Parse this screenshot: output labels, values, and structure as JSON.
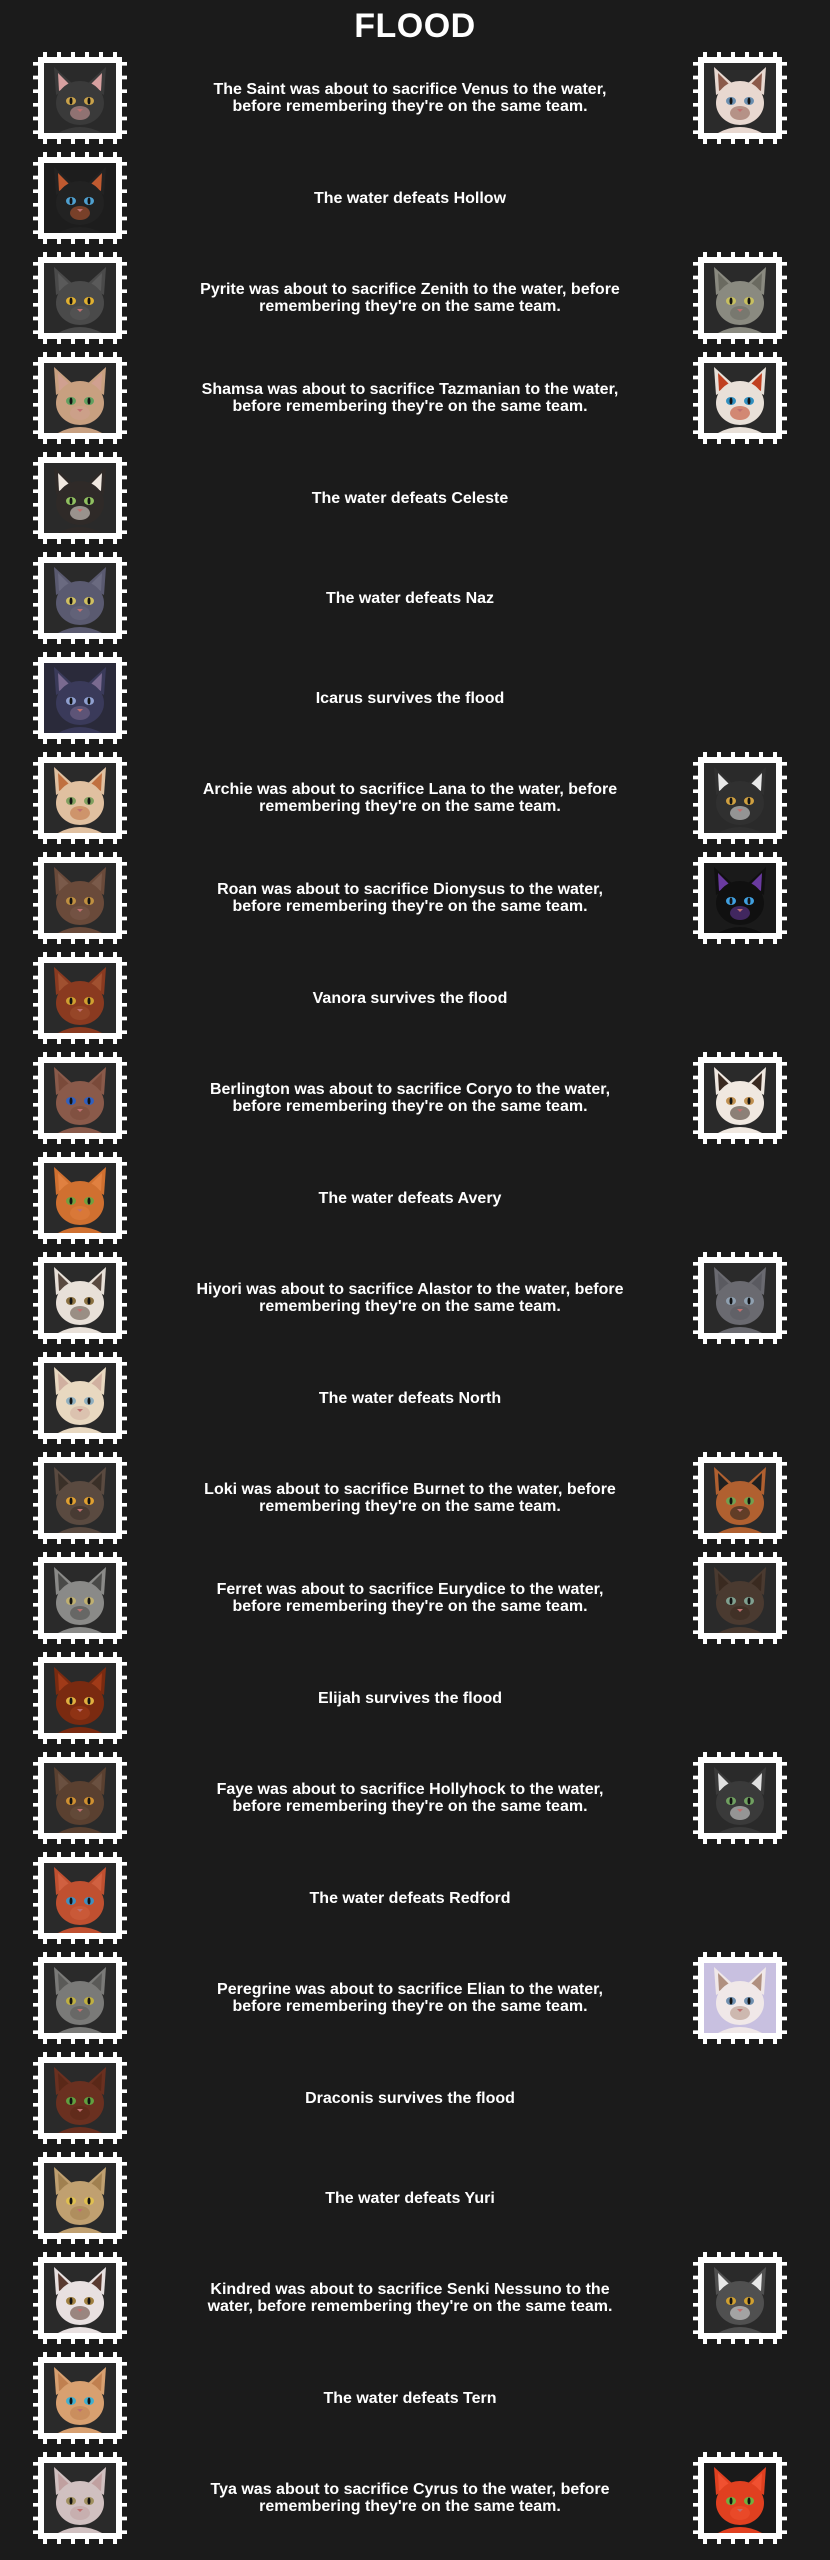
{
  "title": "FLOOD",
  "events": [
    {
      "text": "The Saint was about to sacrifice Venus to the water, before remembering they're on the same team.",
      "left": {
        "icon": "cat-portrait-icon",
        "bg": "#2a2a2a",
        "fur": "#3a3a3a",
        "ear": "#d7a0a0",
        "eye": "#c9a24a"
      },
      "right": {
        "icon": "cat-portrait-icon",
        "bg": "#2b2b2b",
        "fur": "#e8d8d0",
        "ear": "#8b5a4a",
        "eye": "#6a8fb0"
      }
    },
    {
      "text": "The water defeats Hollow",
      "left": {
        "icon": "cat-portrait-icon",
        "bg": "#1d1d1d",
        "fur": "#222222",
        "ear": "#c05a30",
        "eye": "#4fa0d0"
      }
    },
    {
      "text": "Pyrite was about to sacrifice Zenith to the water, before remembering they're on the same team.",
      "left": {
        "icon": "cat-portrait-icon",
        "bg": "#2a2a2a",
        "fur": "#4a4a4a",
        "ear": "#5a5a5a",
        "eye": "#e0b030"
      },
      "right": {
        "icon": "cat-portrait-icon",
        "bg": "#2a2a2a",
        "fur": "#8a8a80",
        "ear": "#6a6a60",
        "eye": "#c8c060"
      }
    },
    {
      "text": "Shamsa was about to sacrifice Tazmanian to the water, before remembering they're on the same team.",
      "left": {
        "icon": "cat-portrait-icon",
        "bg": "#2a2a2a",
        "fur": "#c8a080",
        "ear": "#d0a090",
        "eye": "#60a060"
      },
      "right": {
        "icon": "cat-portrait-icon",
        "bg": "#2a2a2a",
        "fur": "#e8e0d8",
        "ear": "#c04020",
        "eye": "#3090c0"
      }
    },
    {
      "text": "The water defeats Celeste",
      "left": {
        "icon": "cat-portrait-icon",
        "bg": "#2a2a2a",
        "fur": "#2f2a28",
        "ear": "#f0e8e0",
        "eye": "#90c060"
      }
    },
    {
      "text": "The water defeats Naz",
      "left": {
        "icon": "cat-portrait-icon",
        "bg": "#2a2a2a",
        "fur": "#5a5a70",
        "ear": "#6a6a80",
        "eye": "#d0c060"
      }
    },
    {
      "text": "Icarus survives the flood",
      "left": {
        "icon": "cat-portrait-icon",
        "bg": "#2a2a3a",
        "fur": "#3a3a5a",
        "ear": "#7a6a90",
        "eye": "#90a0d0"
      }
    },
    {
      "text": "Archie was about to sacrifice Lana to the water, before remembering they're on the same team.",
      "left": {
        "icon": "cat-portrait-icon",
        "bg": "#2a2a2a",
        "fur": "#e0c0a0",
        "ear": "#c07040",
        "eye": "#80a060"
      },
      "right": {
        "icon": "cat-portrait-icon",
        "bg": "#2a2a2a",
        "fur": "#303030",
        "ear": "#e8e8e8",
        "eye": "#d0a040"
      }
    },
    {
      "text": "Roan was about to sacrifice Dionysus to the water, before remembering they're on the same team.",
      "left": {
        "icon": "cat-portrait-icon",
        "bg": "#2a2a2a",
        "fur": "#6a4a3a",
        "ear": "#7a5a4a",
        "eye": "#c09040"
      },
      "right": {
        "icon": "cat-portrait-icon",
        "bg": "#1a1a1a",
        "fur": "#101010",
        "ear": "#6a3aa0",
        "eye": "#40a0e0"
      }
    },
    {
      "text": "Vanora survives the flood",
      "left": {
        "icon": "cat-portrait-icon",
        "bg": "#2a2a2a",
        "fur": "#8a3a20",
        "ear": "#a05030",
        "eye": "#d0a030"
      }
    },
    {
      "text": "Berlington was about to sacrifice Coryo to the water, before remembering they're on the same team.",
      "left": {
        "icon": "cat-portrait-icon",
        "bg": "#2a2a2a",
        "fur": "#8a5a4a",
        "ear": "#7a4a3a",
        "eye": "#3060c0"
      },
      "right": {
        "icon": "cat-portrait-icon",
        "bg": "#2a2a2a",
        "fur": "#f0e8e0",
        "ear": "#3a2a20",
        "eye": "#c09050"
      }
    },
    {
      "text": "The water defeats Avery",
      "left": {
        "icon": "cat-portrait-icon",
        "bg": "#2a2a2a",
        "fur": "#d07030",
        "ear": "#e08040",
        "eye": "#70a040"
      }
    },
    {
      "text": "Hiyori was about to sacrifice Alastor to the water, before remembering they're on the same team.",
      "left": {
        "icon": "cat-portrait-icon",
        "bg": "#2a2a2a",
        "fur": "#e8e0d8",
        "ear": "#5a4a40",
        "eye": "#8a7040"
      },
      "right": {
        "icon": "cat-portrait-icon",
        "bg": "#2a2a2a",
        "fur": "#6a6a70",
        "ear": "#5a5a60",
        "eye": "#90a0b0"
      }
    },
    {
      "text": "The water defeats North",
      "left": {
        "icon": "cat-portrait-icon",
        "bg": "#2a2a2a",
        "fur": "#e8d8c0",
        "ear": "#d0b0a0",
        "eye": "#90b0c0"
      }
    },
    {
      "text": "Loki was about to sacrifice Burnet to the water, before remembering they're on the same team.",
      "left": {
        "icon": "cat-portrait-icon",
        "bg": "#2a2a2a",
        "fur": "#5a4a40",
        "ear": "#3a3028",
        "eye": "#e0a030"
      },
      "right": {
        "icon": "cat-portrait-icon",
        "bg": "#2a2a2a",
        "fur": "#b06030",
        "ear": "#202020",
        "eye": "#70a050"
      }
    },
    {
      "text": "Ferret was about to sacrifice Eurydice to the water, before remembering they're on the same team.",
      "left": {
        "icon": "cat-portrait-icon",
        "bg": "#2a2a2a",
        "fur": "#8a8a88",
        "ear": "#4a4a48",
        "eye": "#c0b070"
      },
      "right": {
        "icon": "cat-portrait-icon",
        "bg": "#2a2a2a",
        "fur": "#4a3a30",
        "ear": "#3a2a20",
        "eye": "#80a090"
      }
    },
    {
      "text": "Elijah survives the flood",
      "left": {
        "icon": "cat-portrait-icon",
        "bg": "#2a2a2a",
        "fur": "#7a2a10",
        "ear": "#a03a18",
        "eye": "#e0b040"
      }
    },
    {
      "text": "Faye was about to sacrifice Hollyhock to the water, before remembering they're on the same team.",
      "left": {
        "icon": "cat-portrait-icon",
        "bg": "#2a2a2a",
        "fur": "#5a4030",
        "ear": "#6a5040",
        "eye": "#d09030"
      },
      "right": {
        "icon": "cat-portrait-icon",
        "bg": "#2a2a2a",
        "fur": "#3a3a3a",
        "ear": "#e0e0e0",
        "eye": "#70a060"
      }
    },
    {
      "text": "The water defeats Redford",
      "left": {
        "icon": "cat-portrait-icon",
        "bg": "#2a2a2a",
        "fur": "#c05030",
        "ear": "#d06040",
        "eye": "#4090c0"
      }
    },
    {
      "text": "Peregrine was about to sacrifice Elian to the water, before remembering they're on the same team.",
      "left": {
        "icon": "cat-portrait-icon",
        "bg": "#2a2a2a",
        "fur": "#7a7a78",
        "ear": "#5a5a58",
        "eye": "#c0b040"
      },
      "right": {
        "icon": "cat-portrait-icon",
        "bg": "#c8c0e0",
        "fur": "#f0e8e8",
        "ear": "#b09080",
        "eye": "#7090b0"
      }
    },
    {
      "text": "Draconis survives the flood",
      "left": {
        "icon": "cat-portrait-icon",
        "bg": "#2a2a2a",
        "fur": "#6a3020",
        "ear": "#5a2818",
        "eye": "#60a040"
      }
    },
    {
      "text": "The water defeats Yuri",
      "left": {
        "icon": "cat-portrait-icon",
        "bg": "#2a2a2a",
        "fur": "#c0a070",
        "ear": "#a08050",
        "eye": "#e0c050"
      }
    },
    {
      "text": "Kindred was about to sacrifice Senki Nessuno to the water, before remembering they're on the same team.",
      "left": {
        "icon": "cat-portrait-icon",
        "bg": "#2a2a2a",
        "fur": "#e8e0e0",
        "ear": "#5a3a30",
        "eye": "#a08040"
      },
      "right": {
        "icon": "cat-portrait-icon",
        "bg": "#2a2a2a",
        "fur": "#505050",
        "ear": "#e8e8e8",
        "eye": "#d0a030"
      }
    },
    {
      "text": "The water defeats Tern",
      "left": {
        "icon": "cat-portrait-icon",
        "bg": "#2a2a2a",
        "fur": "#d8a070",
        "ear": "#c08050",
        "eye": "#40b0d0"
      }
    },
    {
      "text": "Tya was about to sacrifice Cyrus to the water, before remembering they're on the same team.",
      "left": {
        "icon": "cat-portrait-icon",
        "bg": "#2a2a2a",
        "fur": "#d0c0c0",
        "ear": "#c0a0a0",
        "eye": "#a09060"
      },
      "right": {
        "icon": "cat-portrait-icon",
        "bg": "#1a1a1a",
        "fur": "#e04020",
        "ear": "#f05030",
        "eye": "#70b040"
      }
    }
  ]
}
